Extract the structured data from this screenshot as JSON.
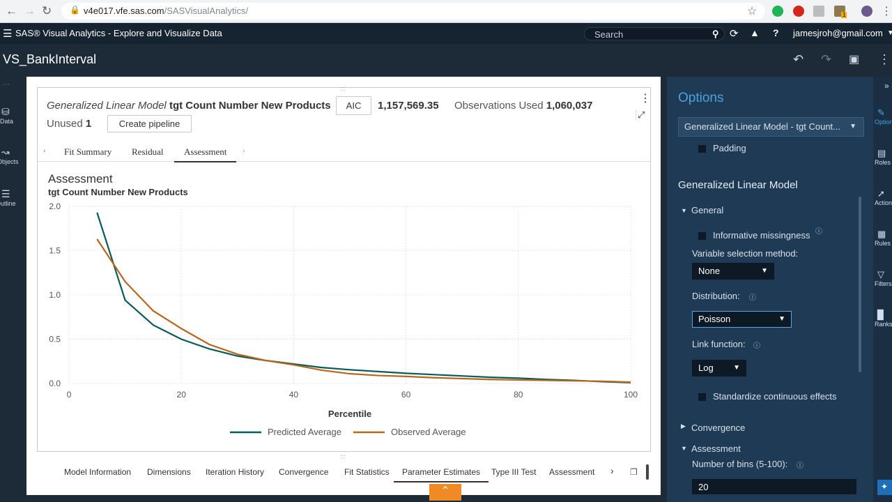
{
  "browser": {
    "url_host": "v4e017.vfe.sas.com",
    "url_path": "/SASVisualAnalytics/",
    "ext_badge": "1"
  },
  "app": {
    "title": "SAS® Visual Analytics - Explore and Visualize Data",
    "search_placeholder": "Search",
    "user": "jamesjroh@gmail.com"
  },
  "report": {
    "name": "VS_BankInterval"
  },
  "left_rail": [
    {
      "label": "Data",
      "icon": "database-icon"
    },
    {
      "label": "Objects",
      "icon": "chart-icon"
    },
    {
      "label": "Outline",
      "icon": "list-icon"
    }
  ],
  "model": {
    "title_italic": "Generalized Linear Model",
    "title_bold": "tgt Count Number New Products",
    "aic_label": "AIC",
    "aic_value": "1,157,569.35",
    "obs_label": "Observations Used",
    "obs_value": "1,060,037",
    "unused_label": "Unused",
    "unused_value": "1",
    "pipeline_label": "Create pipeline"
  },
  "tabs": [
    {
      "label": "Fit Summary"
    },
    {
      "label": "Residual"
    },
    {
      "label": "Assessment",
      "active": true
    }
  ],
  "chart_data": {
    "type": "line",
    "title": "Assessment",
    "subtitle": "tgt Count Number New Products",
    "xlabel": "Percentile",
    "ylabel": "",
    "xlim": [
      0,
      100
    ],
    "ylim": [
      0,
      2.0
    ],
    "xticks": [
      0,
      20,
      40,
      60,
      80,
      100
    ],
    "yticks": [
      0.0,
      0.5,
      1.0,
      1.5,
      2.0
    ],
    "ytick_labels": [
      "0.0",
      "0.5",
      "1.0",
      "1.5",
      "2.0"
    ],
    "grid": true,
    "legend": "bottom",
    "x": [
      5,
      10,
      15,
      20,
      25,
      30,
      35,
      40,
      45,
      50,
      55,
      60,
      65,
      70,
      75,
      80,
      85,
      90,
      95,
      100
    ],
    "series": [
      {
        "name": "Predicted Average",
        "color": "#0b5a5a",
        "values": [
          1.93,
          0.94,
          0.66,
          0.5,
          0.39,
          0.31,
          0.26,
          0.22,
          0.18,
          0.155,
          0.135,
          0.115,
          0.1,
          0.085,
          0.07,
          0.06,
          0.045,
          0.035,
          0.02,
          0.01
        ]
      },
      {
        "name": "Observed Average",
        "color": "#b8661e",
        "values": [
          1.63,
          1.15,
          0.82,
          0.62,
          0.44,
          0.33,
          0.26,
          0.21,
          0.15,
          0.11,
          0.09,
          0.08,
          0.065,
          0.055,
          0.045,
          0.04,
          0.035,
          0.03,
          0.025,
          0.015
        ]
      }
    ]
  },
  "bottom_tabs": [
    {
      "label": "Model Information"
    },
    {
      "label": "Dimensions"
    },
    {
      "label": "Iteration History"
    },
    {
      "label": "Convergence"
    },
    {
      "label": "Fit Statistics"
    },
    {
      "label": "Parameter Estimates",
      "active": true
    },
    {
      "label": "Type III Test"
    },
    {
      "label": "Assessment"
    }
  ],
  "options": {
    "title": "Options",
    "object_select": "Generalized Linear Model - tgt Count...",
    "padding_label": "Padding",
    "section_title": "Generalized Linear Model",
    "general_label": "General",
    "informative_missingness": "Informative missingness",
    "var_sel_label": "Variable selection method:",
    "var_sel_value": "None",
    "distribution_label": "Distribution:",
    "distribution_value": "Poisson",
    "link_label": "Link function:",
    "link_value": "Log",
    "standardize_label": "Standardize continuous effects",
    "convergence_label": "Convergence",
    "assessment_label": "Assessment",
    "bins_label": "Number of bins (5-100):",
    "bins_value": "20"
  },
  "right_rail": [
    {
      "label": "Options",
      "icon": "brush-icon"
    },
    {
      "label": "Roles",
      "icon": "roles-icon"
    },
    {
      "label": "Actions",
      "icon": "actions-icon"
    },
    {
      "label": "Rules",
      "icon": "rules-icon"
    },
    {
      "label": "Filters",
      "icon": "filter-icon"
    },
    {
      "label": "Ranks",
      "icon": "ranks-icon"
    }
  ]
}
